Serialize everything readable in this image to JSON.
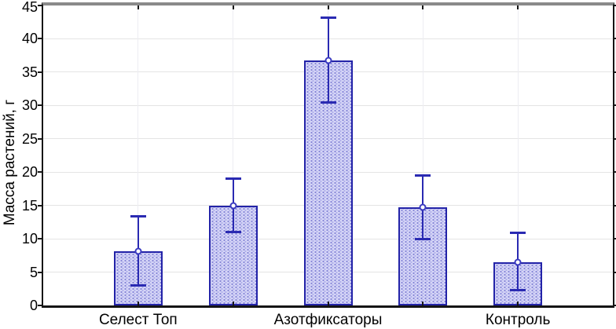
{
  "chart_data": {
    "type": "bar",
    "title": "",
    "xlabel": "",
    "ylabel": "Масса растений, г",
    "ylim": [
      0,
      45
    ],
    "yticks": [
      0,
      5,
      10,
      15,
      20,
      25,
      30,
      35,
      40,
      45
    ],
    "grid": "horizontal gridlines at each ytick; faint vertical gridline at each category center",
    "legend": "none",
    "categories": [
      "Селест Топ",
      "",
      "Азотфиксаторы",
      "",
      "Контроль"
    ],
    "visible_category_labels": [
      "Селест Топ",
      "Азотфиксаторы",
      "Контроль"
    ],
    "series": [
      {
        "name": "Масса растений",
        "values": [
          8.1,
          15.0,
          36.8,
          14.7,
          6.5
        ],
        "error_upper": [
          13.4,
          19.1,
          43.2,
          19.5,
          11.0
        ],
        "error_lower": [
          3.0,
          10.9,
          30.4,
          9.9,
          2.2
        ]
      }
    ],
    "marker": "white circle at bar top (mean)",
    "colors": {
      "bar_fill": "#d6d6f7",
      "bar_hatch_dot": "#8585d6",
      "bar_border": "#2323a8",
      "error_bar": "#2a2ab2",
      "marker_fill": "#ffffff",
      "marker_border": "#3a3ac0",
      "frame_top": "#8a8a8a",
      "frame": "#151515",
      "gridline": "#e4e4e4",
      "text": "#000000"
    }
  }
}
